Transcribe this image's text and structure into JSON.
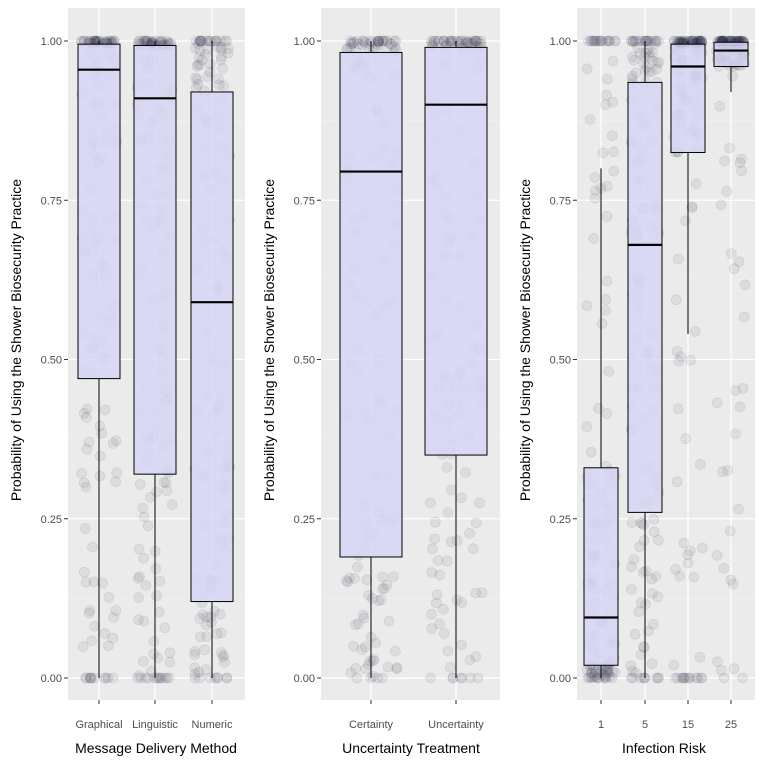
{
  "chart_data": [
    {
      "type": "box",
      "xlabel": "Message Delivery Method",
      "ylabel": "Probability of Using the Shower Biosecurity Practice",
      "ylim": [
        0,
        1
      ],
      "yticks": [
        "0.00",
        "0.25",
        "0.50",
        "0.75",
        "1.00"
      ],
      "grid": true,
      "categories": [
        "Graphical",
        "Linguistic",
        "Numeric"
      ],
      "boxes": [
        {
          "q1": 0.47,
          "median": 0.955,
          "q3": 0.995,
          "whisker_low": 0.0,
          "whisker_high": 1.0
        },
        {
          "q1": 0.32,
          "median": 0.91,
          "q3": 0.993,
          "whisker_low": 0.0,
          "whisker_high": 1.0
        },
        {
          "q1": 0.12,
          "median": 0.59,
          "q3": 0.92,
          "whisker_low": 0.0,
          "whisker_high": 1.0
        }
      ]
    },
    {
      "type": "box",
      "xlabel": "Uncertainty Treatment",
      "ylabel": "Probability of Using the Shower Biosecurity Practice",
      "ylim": [
        0,
        1
      ],
      "yticks": [
        "0.00",
        "0.25",
        "0.50",
        "0.75",
        "1.00"
      ],
      "grid": true,
      "categories": [
        "Certainty",
        "Uncertainty"
      ],
      "boxes": [
        {
          "q1": 0.19,
          "median": 0.795,
          "q3": 0.982,
          "whisker_low": 0.0,
          "whisker_high": 1.0
        },
        {
          "q1": 0.35,
          "median": 0.9,
          "q3": 0.99,
          "whisker_low": 0.0,
          "whisker_high": 1.0
        }
      ]
    },
    {
      "type": "box",
      "xlabel": "Infection Risk",
      "ylabel": "Probability of Using the Shower Biosecurity Practice",
      "ylim": [
        0,
        1
      ],
      "yticks": [
        "0.00",
        "0.25",
        "0.50",
        "0.75",
        "1.00"
      ],
      "grid": true,
      "categories": [
        "1",
        "5",
        "15",
        "25"
      ],
      "boxes": [
        {
          "q1": 0.02,
          "median": 0.095,
          "q3": 0.33,
          "whisker_low": 0.0,
          "whisker_high": 0.8
        },
        {
          "q1": 0.26,
          "median": 0.68,
          "q3": 0.935,
          "whisker_low": 0.0,
          "whisker_high": 1.0
        },
        {
          "q1": 0.825,
          "median": 0.96,
          "q3": 0.995,
          "whisker_low": 0.54,
          "whisker_high": 1.0
        },
        {
          "q1": 0.96,
          "median": 0.985,
          "q3": 0.998,
          "whisker_low": 0.92,
          "whisker_high": 1.0
        }
      ]
    }
  ],
  "colors": {
    "panel": "#ebebeb",
    "grid_major": "#ffffff",
    "box_fill": "#d6d6f5",
    "box_stroke": "#000000",
    "points": "#23233f"
  }
}
